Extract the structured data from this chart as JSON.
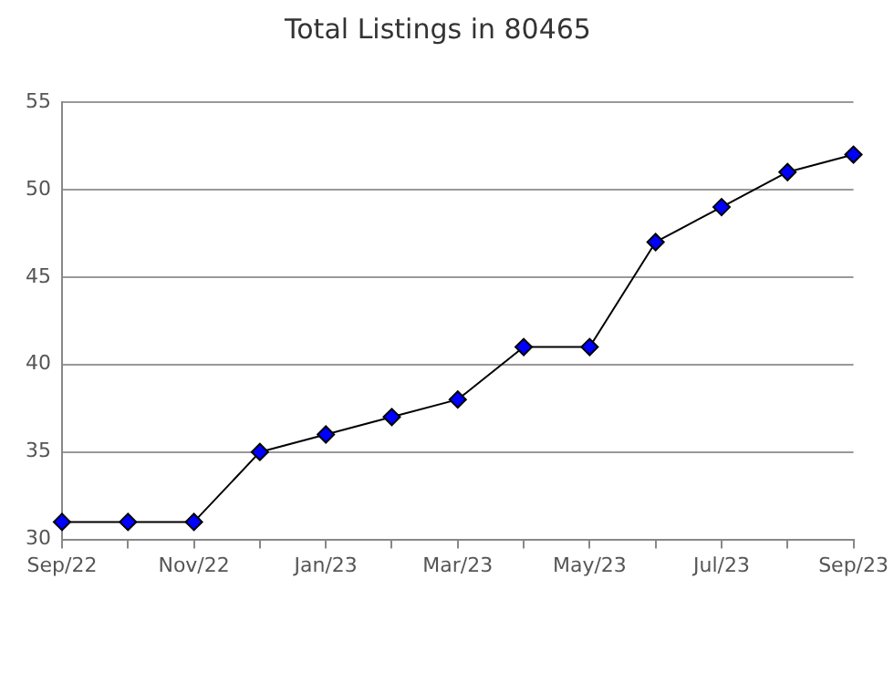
{
  "chart_data": {
    "type": "line",
    "title": "Total Listings in 80465",
    "categories": [
      "Sep/22",
      null,
      "Nov/22",
      null,
      "Jan/23",
      null,
      "Mar/23",
      null,
      "May/23",
      null,
      "Jul/23",
      null,
      "Sep/23"
    ],
    "series": [
      {
        "color": "#0000ff",
        "values": [
          31,
          31,
          31,
          35,
          36,
          37,
          38,
          41,
          41,
          47,
          49,
          51,
          52
        ]
      }
    ],
    "ylim": [
      30,
      55
    ],
    "yticks": [
      30,
      35,
      40,
      45,
      50,
      55
    ],
    "grid": "y",
    "legend": false,
    "marker": "diamond",
    "line_style": "solid"
  }
}
